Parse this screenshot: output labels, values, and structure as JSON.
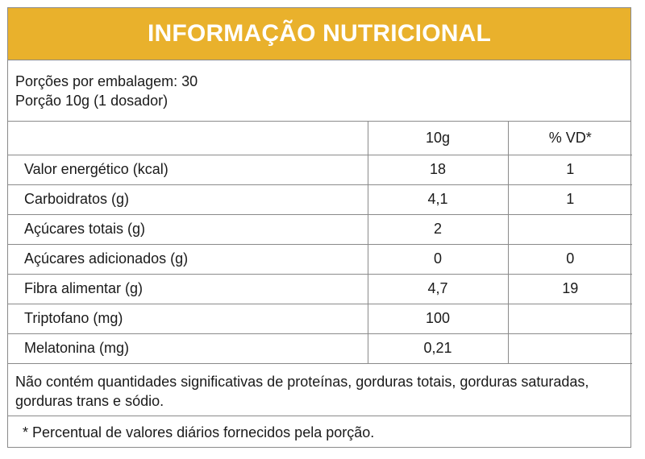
{
  "header": {
    "title": "INFORMAÇÃO NUTRICIONAL",
    "background": "#E9B12C"
  },
  "serving": {
    "per_package": "Porções por embalagem: 30",
    "portion": "Porção 10g (1 dosador)"
  },
  "table": {
    "columns": [
      "",
      "10g",
      "% VD*"
    ],
    "rows": [
      {
        "name": "Valor energético (kcal)",
        "amount": "18",
        "vd": "1"
      },
      {
        "name": "Carboidratos (g)",
        "amount": "4,1",
        "vd": "1"
      },
      {
        "name": "Açúcares totais (g)",
        "amount": "2",
        "vd": ""
      },
      {
        "name": "Açúcares adicionados (g)",
        "amount": "0",
        "vd": "0"
      },
      {
        "name": "Fibra alimentar (g)",
        "amount": "4,7",
        "vd": "19"
      },
      {
        "name": "Triptofano (mg)",
        "amount": "100",
        "vd": ""
      },
      {
        "name": "Melatonina (mg)",
        "amount": "0,21",
        "vd": ""
      }
    ]
  },
  "note": "Não contém quantidades significativas de proteínas, gorduras totais, gorduras saturadas, gorduras trans e sódio.",
  "footnote": "* Percentual de valores diários fornecidos pela porção."
}
